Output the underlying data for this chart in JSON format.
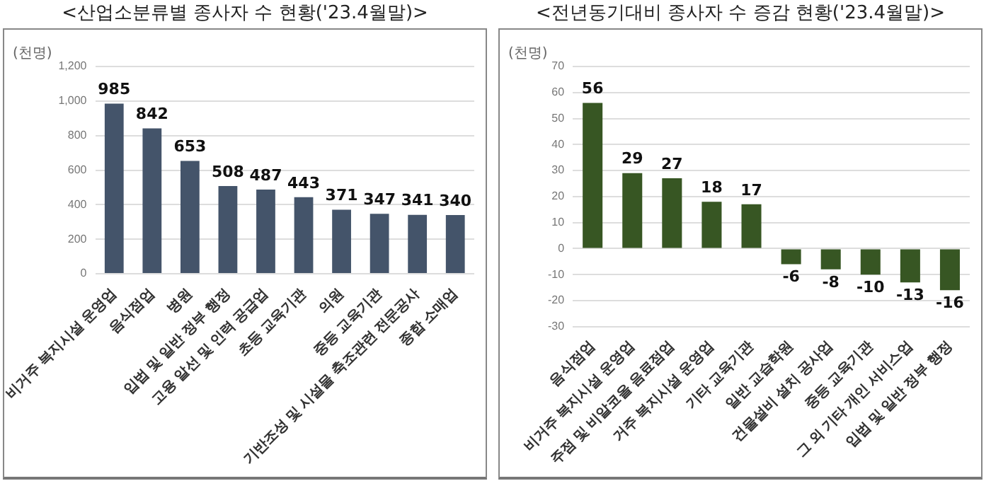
{
  "chart_data": [
    {
      "type": "bar",
      "title": "<산업소분류별 종사자 수 현황('23.4월말)>",
      "ylabel": "(천명)",
      "categories": [
        "비거주 복지시설 운영업",
        "음식점업",
        "병원",
        "입법 및 일반 정부 행정",
        "고용 알선 및 인력 공급업",
        "초등 교육기관",
        "의원",
        "중등 교육기관",
        "기반조성 및 시설물 축조관련 전문공사",
        "종합 소매업"
      ],
      "values": [
        985,
        842,
        653,
        508,
        487,
        443,
        371,
        347,
        341,
        340
      ],
      "color": "#44546a",
      "ylim": [
        0,
        1200
      ],
      "yticks": [
        0,
        {
          "value": 200,
          "label": "200"
        },
        {
          "value": 400,
          "label": "400"
        },
        {
          "value": 600,
          "label": "600"
        },
        {
          "value": 800,
          "label": "800"
        },
        {
          "value": 1000,
          "label": "1,000"
        },
        {
          "value": 1200,
          "label": "1,200"
        }
      ],
      "grid": "y",
      "data_labels": true
    },
    {
      "type": "bar",
      "title": "<전년동기대비 종사자 수 증감 현황('23.4월말)>",
      "ylabel": "(천명)",
      "categories": [
        "음식점업",
        "비거주 복지시설 운영업",
        "주점 및 비알코올 음료점업",
        "거주 복지시설 운영업",
        "기타 교육기관",
        "일반 교습학원",
        "건물설비 설치 공사업",
        "중등 교육기관",
        "그 외 기타 개인 서비스업",
        "입법 및 일반 정부 행정"
      ],
      "values": [
        56,
        29,
        27,
        18,
        17,
        -6,
        -8,
        -10,
        -13,
        -16
      ],
      "color": "#375623",
      "ylim": [
        -30,
        70
      ],
      "yticks": [
        -30,
        -20,
        -10,
        0,
        10,
        20,
        30,
        40,
        50,
        60,
        70
      ],
      "grid": "y",
      "data_labels": true
    }
  ]
}
